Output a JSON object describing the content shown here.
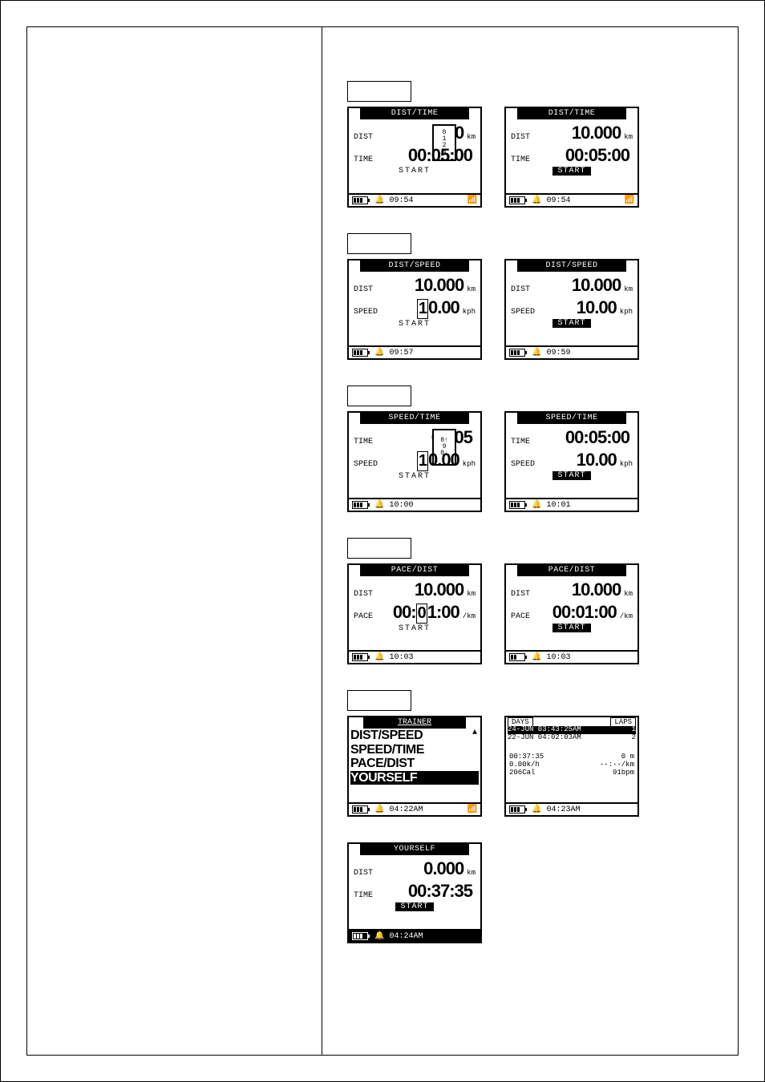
{
  "rows": [
    {
      "label": "",
      "left": {
        "title": "DIST/TIME",
        "title_mode": "short",
        "l1": {
          "lbl": "DIST",
          "val": "000",
          "unit": "km",
          "selector": true,
          "selector_marks": [
            "0",
            "1",
            "2",
            "3"
          ]
        },
        "l2": {
          "lbl": "TIME",
          "val": "00:05:00",
          "unit": ""
        },
        "start_mode": "open",
        "status": {
          "time": "09:54",
          "sig": true,
          "inv": false
        }
      },
      "right": {
        "title": "DIST/TIME",
        "title_mode": "short",
        "l1": {
          "lbl": "DIST",
          "val": "10.000",
          "unit": "km"
        },
        "l2": {
          "lbl": "TIME",
          "val": "00:05:00",
          "unit": ""
        },
        "start_mode": "inv",
        "status": {
          "time": "09:54",
          "sig": true,
          "inv": false
        }
      }
    },
    {
      "label": "",
      "left": {
        "title": "DIST/SPEED",
        "title_mode": "short",
        "l1": {
          "lbl": "DIST",
          "val": "10.000",
          "unit": "km"
        },
        "l2": {
          "lbl": "SPEED",
          "val": "10.00",
          "unit": "kph",
          "cursor": true
        },
        "start_mode": "open",
        "status": {
          "time": "09:57",
          "sig": false,
          "inv": false
        }
      },
      "right": {
        "title": "DIST/SPEED",
        "title_mode": "short",
        "l1": {
          "lbl": "DIST",
          "val": "10.000",
          "unit": "km"
        },
        "l2": {
          "lbl": "SPEED",
          "val": "10.00",
          "unit": "kph"
        },
        "start_mode": "inv",
        "status": {
          "time": "09:59",
          "sig": false,
          "inv": false
        }
      }
    },
    {
      "label": "",
      "left": {
        "title": "SPEED/TIME",
        "title_mode": "short",
        "l1": {
          "lbl": "TIME",
          "val": "00:05",
          "unit": "",
          "selector": true,
          "selector_marks": [
            "8↑",
            "9",
            "0↓"
          ]
        },
        "l2": {
          "lbl": "SPEED",
          "val": "10.00",
          "unit": "kph",
          "cursor": true
        },
        "start_mode": "open",
        "status": {
          "time": "10:00",
          "sig": false,
          "inv": false
        }
      },
      "right": {
        "title": "SPEED/TIME",
        "title_mode": "short",
        "l1": {
          "lbl": "TIME",
          "val": "00:05:00",
          "unit": ""
        },
        "l2": {
          "lbl": "SPEED",
          "val": "10.00",
          "unit": "kph"
        },
        "start_mode": "inv",
        "status": {
          "time": "10:01",
          "sig": false,
          "inv": false
        }
      }
    },
    {
      "label": "",
      "left": {
        "title": "PACE/DIST",
        "title_mode": "short",
        "l1": {
          "lbl": "DIST",
          "val": "10.000",
          "unit": "km"
        },
        "l2": {
          "lbl": "PACE",
          "val": "00:01:00",
          "unit": "/km",
          "cursor": true,
          "cursor_pos": "mid"
        },
        "start_mode": "open",
        "status": {
          "time": "10:03",
          "sig": false,
          "inv": false
        }
      },
      "right": {
        "title": "PACE/DIST",
        "title_mode": "short",
        "l1": {
          "lbl": "DIST",
          "val": "10.000",
          "unit": "km"
        },
        "l2": {
          "lbl": "PACE",
          "val": "00:01:00",
          "unit": "/km"
        },
        "start_mode": "inv",
        "status": {
          "time": "10:03",
          "sig": false,
          "inv": false,
          "half_batt": true
        }
      }
    }
  ],
  "trainer_label": "",
  "trainer_menu": {
    "title": "TRAINER",
    "items": [
      "DIST/SPEED",
      "SPEED/TIME",
      "PACE/DIST",
      "YOURSELF"
    ],
    "selected": 3,
    "status_time": "04:22AM",
    "sig": true
  },
  "days_laps": {
    "head_left": "DAYS",
    "head_right": "LAPS",
    "rows": [
      {
        "date": "24-JUN",
        "time": "03:43:25AM",
        "lap": "1",
        "sel": true
      },
      {
        "date": "22-JUN",
        "time": "04:02:03AM",
        "lap": "2",
        "sel": false
      }
    ],
    "stats_left": [
      "00:37:35",
      "0.00k/h",
      "206Cal"
    ],
    "stats_right": [
      "0 m",
      "--:--/km",
      "91bpm"
    ],
    "status_time": "04:23AM"
  },
  "yourself": {
    "title": "YOURSELF",
    "l1": {
      "lbl": "DIST",
      "val": "0.000",
      "unit": "km"
    },
    "l2": {
      "lbl": "TIME",
      "val": "00:37:35",
      "unit": ""
    },
    "start_mode": "inv",
    "status_time": "04:24AM",
    "status_inv": true
  }
}
